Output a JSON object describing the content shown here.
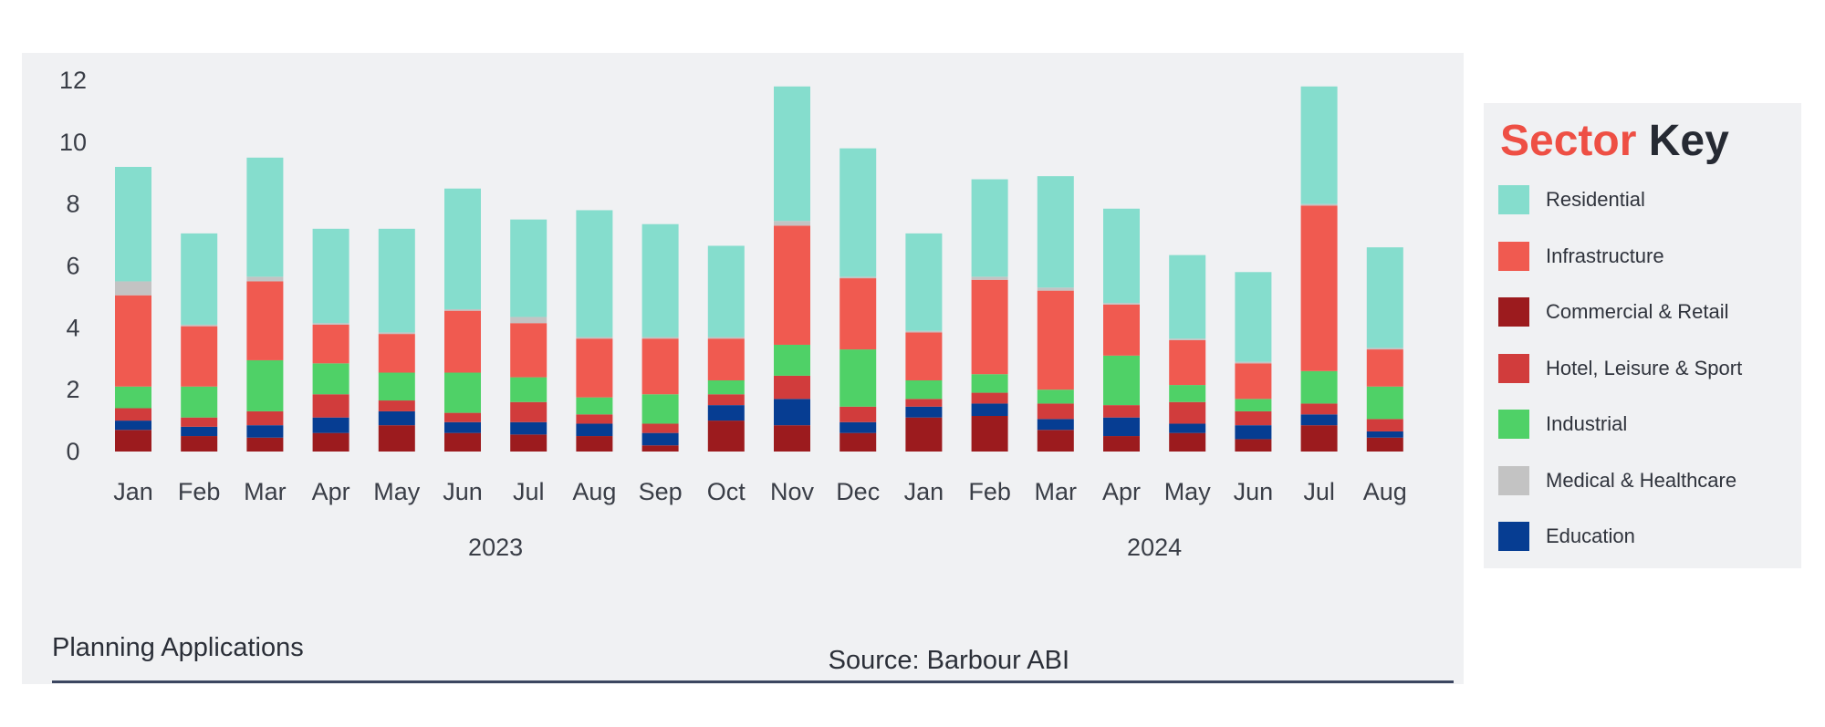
{
  "footer": {
    "title": "Planning Applications",
    "source": "Source: Barbour ABI"
  },
  "legend": {
    "title_part1": "Sector",
    "title_part2": "Key",
    "items": [
      {
        "label": "Residential",
        "color": "#85ddcd"
      },
      {
        "label": "Infrastructure",
        "color": "#f05a50"
      },
      {
        "label": "Commercial & Retail",
        "color": "#9c1b1e"
      },
      {
        "label": "Hotel, Leisure & Sport",
        "color": "#d13c3c"
      },
      {
        "label": "Industrial",
        "color": "#4fd167"
      },
      {
        "label": "Medical & Healthcare",
        "color": "#c3c3c3"
      },
      {
        "label": "Education",
        "color": "#063d92"
      }
    ]
  },
  "chart_data": {
    "type": "bar",
    "stacked": true,
    "ylim": [
      0,
      12
    ],
    "yticks": [
      0,
      2,
      4,
      6,
      8,
      10,
      12
    ],
    "categories": [
      "Jan",
      "Feb",
      "Mar",
      "Apr",
      "May",
      "Jun",
      "Jul",
      "Aug",
      "Sep",
      "Oct",
      "Nov",
      "Dec",
      "Jan",
      "Feb",
      "Mar",
      "Apr",
      "May",
      "Jun",
      "Jul",
      "Aug"
    ],
    "year_groups": [
      {
        "label": "2023",
        "start": 0,
        "end": 11
      },
      {
        "label": "2024",
        "start": 12,
        "end": 19
      }
    ],
    "series": [
      {
        "name": "Commercial & Retail",
        "color": "#9c1b1e",
        "values": [
          0.7,
          0.5,
          0.45,
          0.6,
          0.85,
          0.6,
          0.55,
          0.5,
          0.2,
          1.0,
          0.85,
          0.6,
          1.1,
          1.15,
          0.7,
          0.5,
          0.6,
          0.4,
          0.85,
          0.45
        ]
      },
      {
        "name": "Education",
        "color": "#063d92",
        "values": [
          0.3,
          0.3,
          0.4,
          0.5,
          0.45,
          0.35,
          0.4,
          0.4,
          0.4,
          0.5,
          0.85,
          0.35,
          0.35,
          0.4,
          0.35,
          0.6,
          0.3,
          0.45,
          0.35,
          0.2
        ]
      },
      {
        "name": "Hotel, Leisure & Sport",
        "color": "#d13c3c",
        "values": [
          0.4,
          0.3,
          0.45,
          0.75,
          0.35,
          0.3,
          0.65,
          0.3,
          0.3,
          0.35,
          0.75,
          0.5,
          0.25,
          0.35,
          0.5,
          0.4,
          0.7,
          0.45,
          0.35,
          0.4
        ]
      },
      {
        "name": "Industrial",
        "color": "#4fd167",
        "values": [
          0.7,
          1.0,
          1.65,
          1.0,
          0.9,
          1.3,
          0.8,
          0.55,
          0.95,
          0.45,
          1.0,
          1.85,
          0.6,
          0.6,
          0.45,
          1.6,
          0.55,
          0.4,
          1.05,
          1.05
        ]
      },
      {
        "name": "Infrastructure",
        "color": "#f05a50",
        "values": [
          2.95,
          1.95,
          2.55,
          1.25,
          1.25,
          2.0,
          1.75,
          1.9,
          1.8,
          1.35,
          3.85,
          2.3,
          1.55,
          3.05,
          3.2,
          1.65,
          1.45,
          1.15,
          5.35,
          1.2
        ]
      },
      {
        "name": "Medical & Healthcare",
        "color": "#c3c3c3",
        "values": [
          0.45,
          0.05,
          0.15,
          0.05,
          0.05,
          0.05,
          0.2,
          0.05,
          0.05,
          0.05,
          0.15,
          0.05,
          0.05,
          0.1,
          0.1,
          0.05,
          0.05,
          0.05,
          0.05,
          0.05
        ]
      },
      {
        "name": "Residential",
        "color": "#85ddcd",
        "values": [
          3.7,
          2.95,
          3.85,
          3.05,
          3.35,
          3.9,
          3.15,
          4.1,
          3.65,
          2.95,
          4.35,
          4.15,
          3.15,
          3.15,
          3.6,
          3.05,
          2.7,
          2.9,
          3.8,
          3.25
        ]
      }
    ]
  }
}
